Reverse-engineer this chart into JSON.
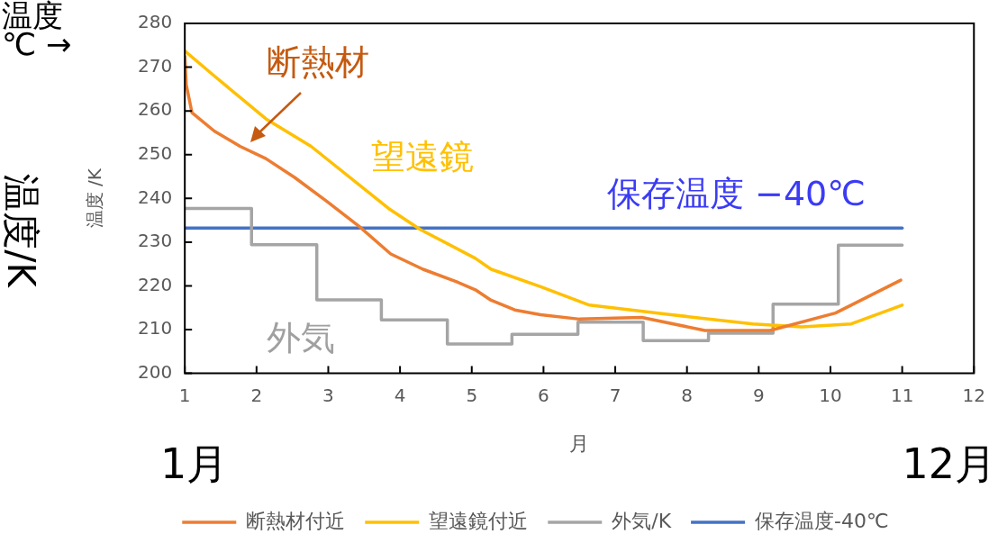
{
  "chart_data": {
    "type": "line",
    "xlabel": "月",
    "ylabel": "温度 /K",
    "xlim": [
      1,
      12
    ],
    "xticks": [
      1,
      2,
      3,
      4,
      5,
      6,
      7,
      8,
      9,
      10,
      11,
      12
    ],
    "ylim": [
      200,
      280
    ],
    "yticks": [
      200,
      210,
      220,
      230,
      240,
      250,
      260,
      270,
      280
    ],
    "grid": false,
    "legend": "bottom",
    "marker": "none",
    "line_style": "solid",
    "series": [
      {
        "name": "断熱材付近",
        "color": "#ed7d31",
        "x": [
          1,
          1.02,
          1.1,
          1.41,
          1.77,
          2.13,
          2.53,
          2.98,
          3.43,
          3.87,
          4.32,
          4.78,
          5.05,
          5.27,
          5.6,
          5.96,
          6.5,
          7.37,
          8.25,
          9.16,
          10.07,
          10.98
        ],
        "values": [
          272.5,
          266,
          259.6,
          255.4,
          251.9,
          249.1,
          244.8,
          239.3,
          233.6,
          227.3,
          223.8,
          221.0,
          219.1,
          216.7,
          214.5,
          213.4,
          212.4,
          212.8,
          209.8,
          209.8,
          213.8,
          221.3
        ]
      },
      {
        "name": "望遠鏡付近",
        "color": "#ffc000",
        "x": [
          1,
          1.41,
          2.13,
          2.76,
          3.84,
          4.28,
          5.05,
          5.27,
          5.96,
          6.64,
          7.78,
          8.92,
          9.6,
          10.29,
          11
        ],
        "values": [
          273.7,
          268.0,
          258.2,
          251.9,
          237.7,
          232.9,
          226.3,
          223.8,
          219.8,
          215.6,
          213.4,
          211.3,
          210.6,
          211.3,
          215.6
        ]
      },
      {
        "name": "外気/K",
        "color": "#a5a5a5",
        "x": [
          1,
          1.93,
          1.93,
          2.84,
          2.84,
          3.74,
          3.74,
          4.66,
          4.66,
          5.56,
          5.56,
          6.48,
          6.48,
          7.39,
          7.39,
          8.3,
          8.3,
          9.2,
          9.2,
          10.11,
          10.11,
          11
        ],
        "values": [
          237.7,
          237.7,
          229.4,
          229.4,
          216.8,
          216.8,
          212.2,
          212.2,
          206.7,
          206.7,
          208.9,
          208.9,
          211.7,
          211.7,
          207.5,
          207.5,
          209.2,
          209.2,
          215.8,
          215.8,
          229.3,
          229.3
        ]
      },
      {
        "name": "保存温度-40℃",
        "color": "#4472c4",
        "x": [
          1,
          11
        ],
        "values": [
          233.2,
          233.2
        ]
      }
    ],
    "annotations": [
      "断熱材",
      "望遠鏡",
      "保存温度 −40℃",
      "外気",
      "温度",
      "℃ →",
      "温度/K",
      "1月",
      "12月"
    ]
  }
}
